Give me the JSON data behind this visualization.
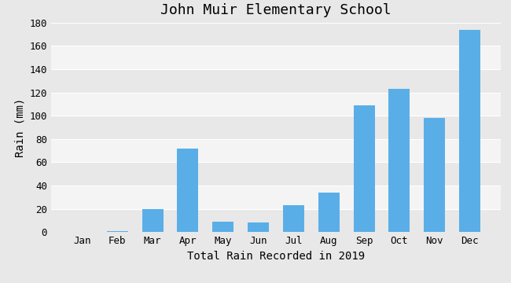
{
  "title": "John Muir Elementary School",
  "xlabel": "Total Rain Recorded in 2019",
  "ylabel": "Rain (mm)",
  "categories": [
    "Jan",
    "Feb",
    "Mar",
    "Apr",
    "May",
    "Jun",
    "Jul",
    "Aug",
    "Sep",
    "Oct",
    "Nov",
    "Dec"
  ],
  "values": [
    0,
    1,
    20,
    72,
    9,
    8,
    23,
    34,
    109,
    123,
    98,
    174
  ],
  "bar_color": "#5aaee8",
  "ylim": [
    0,
    180
  ],
  "yticks": [
    0,
    20,
    40,
    60,
    80,
    100,
    120,
    140,
    160,
    180
  ],
  "band_colors": [
    "#e8e8e8",
    "#f4f4f4"
  ],
  "grid_color": "#ffffff",
  "title_fontsize": 13,
  "label_fontsize": 10,
  "tick_fontsize": 9
}
